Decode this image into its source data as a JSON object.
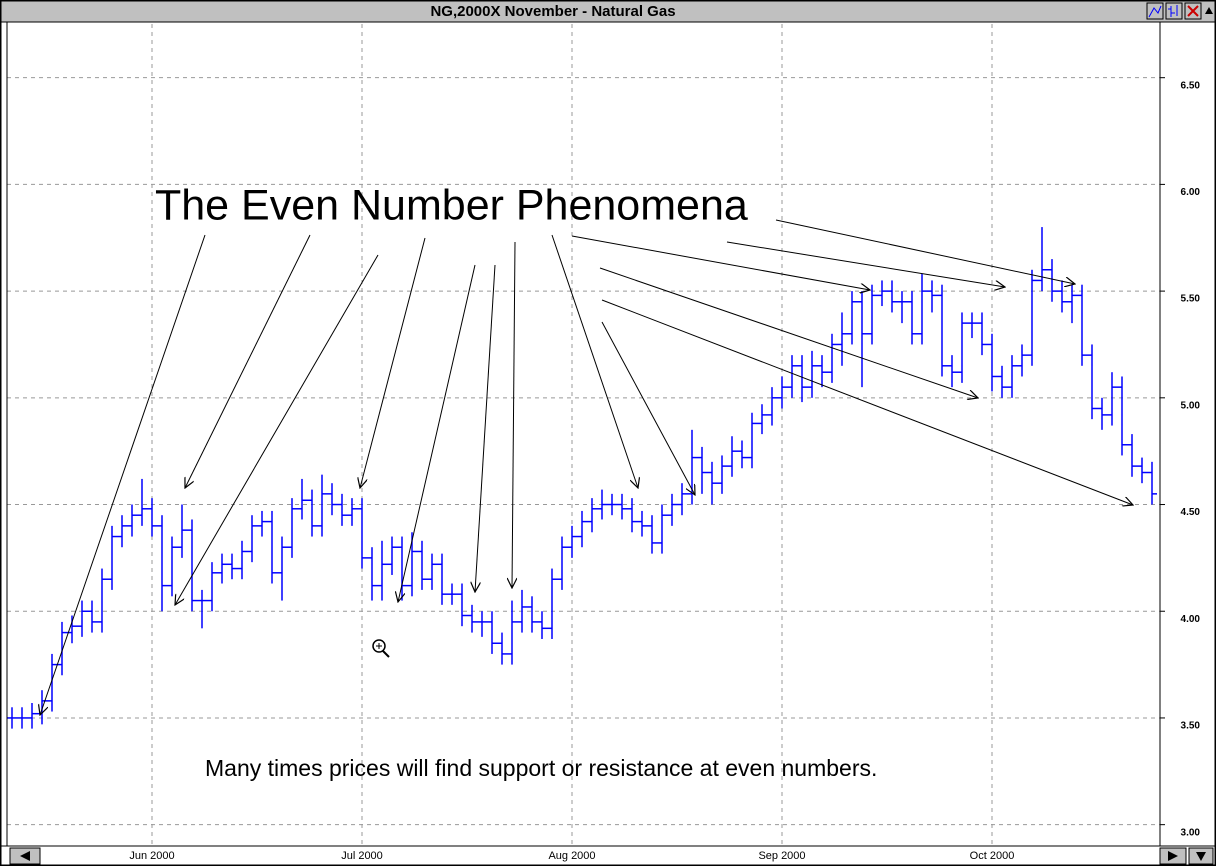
{
  "chart_data": {
    "type": "ohlc",
    "title": "NG,2000X  November - Natural Gas",
    "annotations": [
      "The Even Number Phenomena",
      "Many times prices will find support or resistance at even numbers."
    ],
    "color": "#0000ff",
    "grid": true,
    "categories": [
      null,
      null,
      null,
      null,
      null,
      null,
      null,
      null,
      null,
      null,
      null,
      null,
      null,
      null,
      "Jun 2000",
      null,
      null,
      null,
      null,
      null,
      null,
      null,
      null,
      null,
      null,
      null,
      null,
      null,
      null,
      null,
      null,
      null,
      null,
      null,
      null,
      "Jul 2000",
      null,
      null,
      null,
      null,
      null,
      null,
      null,
      null,
      null,
      null,
      null,
      null,
      null,
      null,
      null,
      null,
      null,
      null,
      null,
      null,
      "Aug 2000",
      null,
      null,
      null,
      null,
      null,
      null,
      null,
      null,
      null,
      null,
      null,
      null,
      null,
      null,
      null,
      null,
      null,
      null,
      null,
      null,
      "Sep 2000",
      null,
      null,
      null,
      null,
      null,
      null,
      null,
      null,
      null,
      null,
      null,
      null,
      null,
      null,
      null,
      null,
      null,
      null,
      null,
      null,
      "Oct 2000",
      null,
      null,
      null,
      null,
      null,
      null,
      null,
      null,
      null,
      null,
      null,
      null,
      null,
      null,
      null,
      null
    ],
    "open": [
      3.5,
      3.5,
      3.5,
      3.52,
      3.58,
      3.75,
      3.9,
      3.93,
      4.0,
      3.95,
      4.15,
      4.35,
      4.4,
      4.45,
      4.48,
      4.4,
      4.12,
      4.3,
      4.38,
      4.05,
      4.05,
      4.18,
      4.22,
      4.2,
      4.28,
      4.4,
      4.42,
      4.18,
      4.3,
      4.48,
      4.52,
      4.4,
      4.55,
      4.5,
      4.45,
      4.48,
      4.25,
      4.12,
      4.22,
      4.3,
      4.12,
      4.28,
      4.15,
      4.22,
      4.08,
      4.08,
      3.98,
      3.95,
      3.95,
      3.85,
      3.8,
      3.95,
      4.02,
      3.95,
      3.92,
      4.15,
      4.3,
      4.35,
      4.42,
      4.48,
      4.5,
      4.5,
      4.48,
      4.42,
      4.4,
      4.32,
      4.45,
      4.5,
      4.55,
      4.72,
      4.65,
      4.6,
      4.68,
      4.75,
      4.72,
      4.88,
      4.92,
      5.0,
      5.05,
      5.15,
      5.05,
      5.15,
      5.12,
      5.25,
      5.3,
      5.45,
      5.3,
      5.48,
      5.5,
      5.45,
      5.45,
      5.3,
      5.5,
      5.48,
      5.15,
      5.12,
      5.35,
      5.35,
      5.25,
      5.1,
      5.05,
      5.15,
      5.2,
      5.55,
      5.6,
      5.5,
      5.45,
      5.48,
      5.2,
      4.95,
      4.92,
      5.05,
      4.78,
      4.68,
      4.65
    ],
    "high": [
      3.55,
      3.55,
      3.57,
      3.63,
      3.8,
      3.95,
      3.98,
      4.05,
      4.05,
      4.2,
      4.4,
      4.45,
      4.5,
      4.62,
      4.53,
      4.45,
      4.35,
      4.5,
      4.43,
      4.1,
      4.23,
      4.27,
      4.27,
      4.33,
      4.45,
      4.47,
      4.47,
      4.35,
      4.53,
      4.62,
      4.57,
      4.64,
      4.6,
      4.55,
      4.53,
      4.53,
      4.3,
      4.33,
      4.35,
      4.35,
      4.37,
      4.33,
      4.27,
      4.27,
      4.13,
      4.13,
      4.03,
      4.0,
      4.0,
      3.9,
      4.05,
      4.1,
      4.07,
      4.0,
      4.2,
      4.35,
      4.4,
      4.47,
      4.53,
      4.57,
      4.55,
      4.55,
      4.53,
      4.47,
      4.45,
      4.5,
      4.55,
      4.6,
      4.85,
      4.77,
      4.7,
      4.73,
      4.82,
      4.8,
      4.93,
      4.97,
      5.05,
      5.1,
      5.2,
      5.2,
      5.22,
      5.2,
      5.3,
      5.4,
      5.5,
      5.5,
      5.53,
      5.55,
      5.55,
      5.5,
      5.5,
      5.58,
      5.55,
      5.53,
      5.2,
      5.4,
      5.4,
      5.4,
      5.3,
      5.15,
      5.2,
      5.25,
      5.6,
      5.8,
      5.65,
      5.55,
      5.53,
      5.53,
      5.25,
      5.0,
      5.12,
      5.1,
      4.83,
      4.72,
      4.7
    ],
    "low": [
      3.45,
      3.45,
      3.45,
      3.47,
      3.53,
      3.7,
      3.85,
      3.88,
      3.9,
      3.9,
      4.1,
      4.3,
      4.35,
      4.4,
      4.35,
      4.0,
      4.07,
      4.25,
      4.0,
      3.92,
      4.0,
      4.13,
      4.15,
      4.15,
      4.23,
      4.35,
      4.13,
      4.05,
      4.25,
      4.43,
      4.35,
      4.35,
      4.45,
      4.4,
      4.4,
      4.2,
      4.05,
      4.05,
      4.17,
      4.05,
      4.07,
      4.1,
      4.1,
      4.03,
      4.03,
      3.93,
      3.9,
      3.88,
      3.8,
      3.75,
      3.75,
      3.9,
      3.9,
      3.87,
      3.87,
      4.1,
      4.25,
      4.3,
      4.37,
      4.43,
      4.45,
      4.43,
      4.37,
      4.35,
      4.27,
      4.27,
      4.4,
      4.45,
      4.5,
      4.55,
      4.5,
      4.55,
      4.63,
      4.67,
      4.67,
      4.83,
      4.87,
      4.95,
      5.0,
      4.98,
      5.0,
      5.05,
      5.07,
      5.15,
      5.25,
      5.05,
      5.25,
      5.43,
      5.4,
      5.35,
      5.25,
      5.25,
      5.4,
      5.1,
      5.05,
      5.07,
      5.28,
      5.2,
      5.03,
      5.0,
      5.0,
      5.1,
      5.15,
      5.5,
      5.45,
      5.4,
      5.35,
      5.15,
      4.9,
      4.85,
      4.87,
      4.73,
      4.63,
      4.6,
      4.5
    ],
    "close": [
      3.5,
      3.5,
      3.52,
      3.58,
      3.75,
      3.9,
      3.93,
      4.0,
      3.95,
      4.15,
      4.35,
      4.4,
      4.45,
      4.48,
      4.4,
      4.12,
      4.3,
      4.38,
      4.05,
      4.05,
      4.18,
      4.22,
      4.2,
      4.28,
      4.4,
      4.42,
      4.18,
      4.3,
      4.48,
      4.52,
      4.4,
      4.55,
      4.5,
      4.45,
      4.48,
      4.25,
      4.12,
      4.22,
      4.3,
      4.12,
      4.28,
      4.15,
      4.22,
      4.08,
      4.08,
      3.98,
      3.95,
      3.95,
      3.85,
      3.8,
      3.95,
      4.02,
      3.95,
      3.92,
      4.15,
      4.3,
      4.35,
      4.42,
      4.48,
      4.5,
      4.5,
      4.48,
      4.42,
      4.4,
      4.32,
      4.45,
      4.5,
      4.55,
      4.72,
      4.65,
      4.6,
      4.68,
      4.75,
      4.72,
      4.88,
      4.92,
      5.0,
      5.05,
      5.15,
      5.05,
      5.15,
      5.12,
      5.25,
      5.3,
      5.45,
      5.3,
      5.48,
      5.5,
      5.45,
      5.45,
      5.3,
      5.5,
      5.48,
      5.15,
      5.12,
      5.35,
      5.35,
      5.25,
      5.1,
      5.05,
      5.15,
      5.2,
      5.55,
      5.6,
      5.5,
      5.45,
      5.48,
      5.2,
      4.95,
      4.92,
      5.05,
      4.78,
      4.68,
      4.65,
      4.55
    ],
    "ylim": [
      2.9,
      6.7
    ],
    "yticks": [
      {
        "value": 3,
        "label": "3.00"
      },
      {
        "value": 3.5,
        "label": "3.50"
      },
      {
        "value": 4,
        "label": "4.00"
      },
      {
        "value": 4.5,
        "label": "4.50"
      },
      {
        "value": 5,
        "label": "5.00"
      },
      {
        "value": 5.5,
        "label": "5.50"
      },
      {
        "value": 6,
        "label": "6.00"
      },
      {
        "value": 6.5,
        "label": "6.50"
      }
    ]
  }
}
